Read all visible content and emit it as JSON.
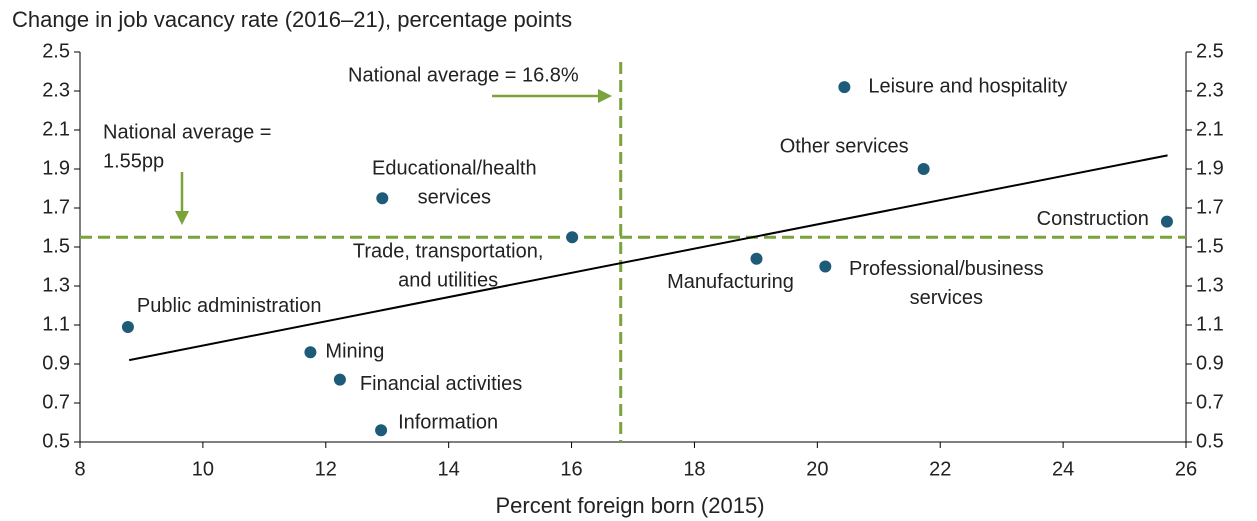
{
  "chart_data": {
    "type": "scatter",
    "title": "Change in job vacancy rate (2016–21), percentage points",
    "x_label": "Percent foreign born (2015)",
    "color": "#1d5b79",
    "x": [
      20.44,
      21.73,
      25.69,
      12.92,
      16.01,
      19.01,
      20.13,
      8.78,
      11.75,
      12.23,
      12.9
    ],
    "values": [
      2.32,
      1.9,
      1.63,
      1.75,
      1.55,
      1.44,
      1.4,
      1.09,
      0.96,
      0.82,
      0.56
    ],
    "point_labels": [
      [
        "Leisure and hospitality"
      ],
      [
        "Other services"
      ],
      [
        "Construction"
      ],
      [
        "Educational/health",
        "services"
      ],
      [
        "Trade, transportation,",
        "and utilities"
      ],
      [
        "Manufacturing"
      ],
      [
        "Professional/business",
        "services"
      ],
      [
        "Public administration"
      ],
      [
        "Mining"
      ],
      [
        "Financial activities"
      ],
      [
        "Information"
      ]
    ],
    "trend": {
      "x": [
        8.8,
        25.7
      ],
      "values": [
        0.92,
        1.97
      ],
      "color": "#000000"
    },
    "reference_lines": {
      "x": 16.8,
      "y": 1.55,
      "color": "#7aa33a"
    },
    "annotations": [
      [
        "National average = 16.8%"
      ],
      [
        "National average =",
        "1.55pp"
      ]
    ],
    "xlim": [
      8,
      26
    ],
    "xticks": [
      8,
      10,
      12,
      14,
      16,
      18,
      20,
      22,
      24,
      26
    ],
    "ylim": [
      0.5,
      2.5
    ],
    "yticks": [
      0.5,
      0.7,
      0.9,
      1.1,
      1.3,
      1.5,
      1.7,
      1.9,
      2.1,
      2.3,
      2.5
    ]
  }
}
